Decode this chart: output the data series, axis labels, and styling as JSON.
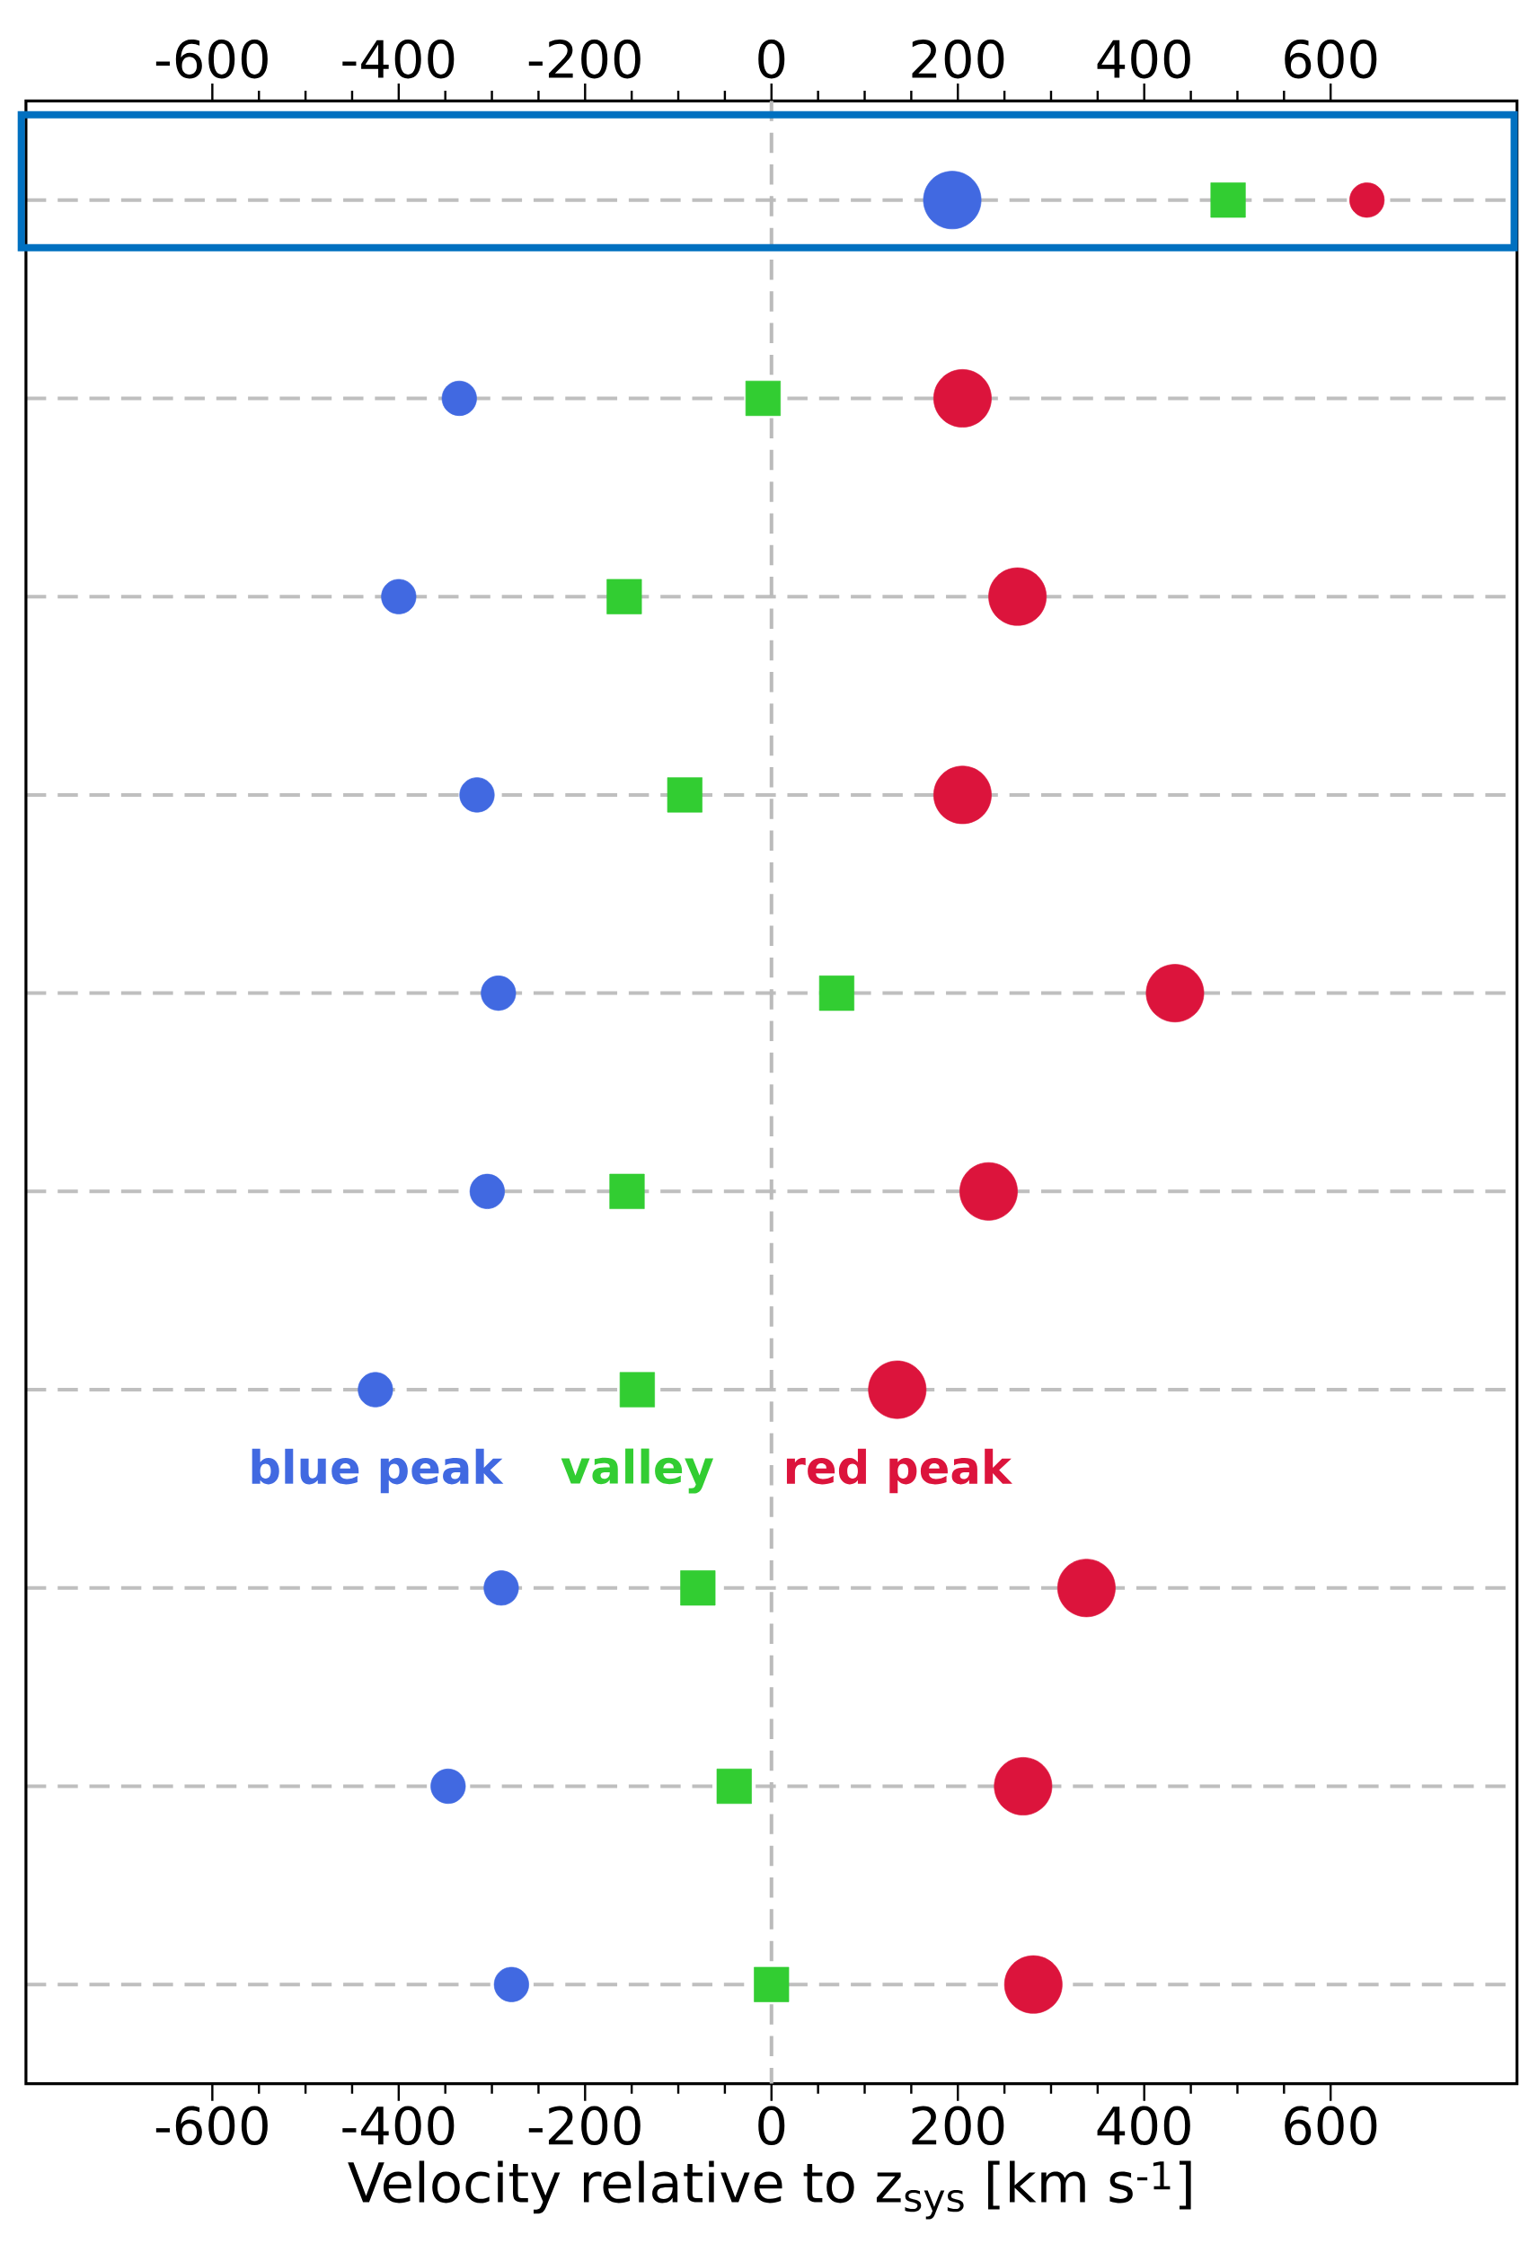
{
  "chart_data": {
    "type": "bubble",
    "orientation": "horizontal",
    "xlabel": "Velocity relative to z$_{sys}$ [km s$^{-1}$]",
    "categories": [
      null,
      null,
      null,
      null,
      null,
      null,
      null,
      null,
      null,
      null
    ],
    "series": [
      {
        "name": "blue peak",
        "color": "#4169e1",
        "marker": "circle",
        "values": [
          194,
          -335,
          -400,
          -316,
          -293,
          -305,
          -425,
          -290,
          -347,
          -279
        ],
        "sizes": [
          1,
          0.36,
          0.36,
          0.36,
          0.36,
          0.36,
          0.36,
          0.36,
          0.36,
          0.36
        ]
      },
      {
        "name": "valley",
        "type": "scatter",
        "color": "#32cd32",
        "marker": "square",
        "values": [
          490,
          -9,
          -158,
          -93,
          70,
          -155,
          -144,
          -79,
          -40,
          0
        ]
      },
      {
        "name": "red peak",
        "color": "#dc143c",
        "marker": "circle",
        "values": [
          639,
          205,
          264,
          205,
          433,
          233,
          135,
          338,
          270,
          281
        ],
        "sizes": [
          0.36,
          1,
          1,
          1,
          1,
          1,
          1,
          1,
          1,
          1
        ]
      }
    ],
    "xlim": [
      -800,
      800
    ],
    "xticks": [
      -600,
      -400,
      -200,
      0,
      200,
      400,
      600
    ],
    "x2lim": [
      -800,
      800
    ],
    "x2ticks": [
      -600,
      -400,
      -200,
      0,
      200,
      400,
      600
    ],
    "grid": "y",
    "ref_lines": [
      {
        "axis": "x",
        "value": 0,
        "color": "#bbbbbb",
        "line_style": "dashed"
      }
    ]
  }
}
